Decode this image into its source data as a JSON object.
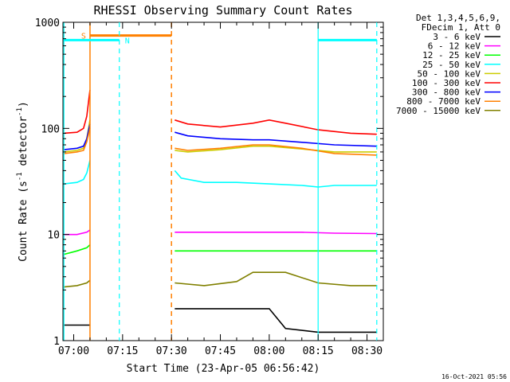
{
  "chart_data": {
    "type": "line",
    "title": "RHESSI Observing Summary Count Rates",
    "xlabel": "Start Time (23-Apr-05 06:56:42)",
    "ylabel_main": "Count Rate (s",
    "ylabel_sup1": "-1",
    "ylabel_mid": " detector",
    "ylabel_sup2": "-1",
    "ylabel_end": ")",
    "footer": "16-Oct-2021 05:56",
    "y_scale": "log",
    "ylim": [
      1,
      1000
    ],
    "y_ticks": [
      1,
      10,
      100,
      1000
    ],
    "y_tick_labels": [
      "1",
      "10",
      "100",
      "1000"
    ],
    "x_range_minutes": [
      "06:56:42",
      "08:35:00"
    ],
    "x_ticks": [
      "07:00",
      "07:15",
      "07:30",
      "07:45",
      "08:00",
      "08:15",
      "08:30"
    ],
    "legend_header": [
      "Det 1,3,4,5,6,9,",
      "FDecim 1, Att 0"
    ],
    "series": [
      {
        "name": "3 - 6 keV",
        "color": "#000000",
        "segments": [
          {
            "x": [
              "06:57",
              "07:01",
              "07:04",
              "07:05"
            ],
            "y": [
              1.4,
              1.4,
              1.4,
              1.4
            ]
          },
          {
            "x": [
              "07:31",
              "07:40",
              "07:50",
              "08:00",
              "08:05",
              "08:15",
              "08:25",
              "08:33"
            ],
            "y": [
              2.0,
              2.0,
              2.0,
              2.0,
              1.3,
              1.2,
              1.2,
              1.2
            ]
          }
        ]
      },
      {
        "name": "6 - 12 keV",
        "color": "#ff00ff",
        "segments": [
          {
            "x": [
              "06:57",
              "07:01",
              "07:04",
              "07:05"
            ],
            "y": [
              10,
              10,
              10.5,
              11
            ]
          },
          {
            "x": [
              "07:31",
              "07:40",
              "07:50",
              "08:00",
              "08:10",
              "08:20",
              "08:33"
            ],
            "y": [
              10.5,
              10.5,
              10.5,
              10.5,
              10.5,
              10.3,
              10.2
            ]
          }
        ]
      },
      {
        "name": "12 - 25 keV",
        "color": "#00ff00",
        "segments": [
          {
            "x": [
              "06:57",
              "07:01",
              "07:04",
              "07:05"
            ],
            "y": [
              6.5,
              7,
              7.5,
              8
            ]
          },
          {
            "x": [
              "07:31",
              "07:40",
              "07:50",
              "08:00",
              "08:10",
              "08:20",
              "08:33"
            ],
            "y": [
              7,
              7,
              7,
              7,
              7,
              7,
              7
            ]
          }
        ]
      },
      {
        "name": "25 - 50 keV",
        "color": "#00ffff",
        "segments": [
          {
            "x": [
              "06:57",
              "07:01",
              "07:03",
              "07:04",
              "07:05"
            ],
            "y": [
              30,
              31,
              33,
              38,
              50
            ]
          },
          {
            "x": [
              "07:31",
              "07:33",
              "07:40",
              "07:50",
              "08:00",
              "08:10",
              "08:15",
              "08:20",
              "08:33"
            ],
            "y": [
              40,
              34,
              31,
              31,
              30,
              29,
              28,
              29,
              29
            ]
          }
        ]
      },
      {
        "name": "50 - 100 keV",
        "color": "#cccc00",
        "segments": [
          {
            "x": [
              "06:57",
              "07:01",
              "07:03",
              "07:04",
              "07:05"
            ],
            "y": [
              60,
              62,
              65,
              80,
              120
            ]
          },
          {
            "x": [
              "07:31",
              "07:35",
              "07:45",
              "07:55",
              "08:00",
              "08:10",
              "08:20",
              "08:33"
            ],
            "y": [
              62,
              60,
              63,
              68,
              68,
              64,
              60,
              60
            ]
          }
        ]
      },
      {
        "name": "100 - 300 keV",
        "color": "#ff0000",
        "segments": [
          {
            "x": [
              "06:57",
              "07:01",
              "07:03",
              "07:04",
              "07:05"
            ],
            "y": [
              90,
              92,
              100,
              130,
              230
            ]
          },
          {
            "x": [
              "07:31",
              "07:35",
              "07:45",
              "07:55",
              "08:00",
              "08:05",
              "08:15",
              "08:25",
              "08:33"
            ],
            "y": [
              120,
              110,
              103,
              112,
              120,
              112,
              97,
              90,
              88
            ]
          }
        ]
      },
      {
        "name": "300 - 800 keV",
        "color": "#0000ff",
        "segments": [
          {
            "x": [
              "06:57",
              "07:01",
              "07:03",
              "07:04",
              "07:05"
            ],
            "y": [
              63,
              65,
              68,
              80,
              110
            ]
          },
          {
            "x": [
              "07:31",
              "07:35",
              "07:45",
              "07:55",
              "08:00",
              "08:10",
              "08:20",
              "08:33"
            ],
            "y": [
              92,
              85,
              80,
              78,
              78,
              74,
              70,
              68
            ]
          }
        ]
      },
      {
        "name": "800 - 7000 keV",
        "color": "#ff8000",
        "segments": [
          {
            "x": [
              "06:57",
              "07:01",
              "07:03",
              "07:04",
              "07:05"
            ],
            "y": [
              58,
              60,
              62,
              75,
              100
            ]
          },
          {
            "x": [
              "07:31",
              "07:35",
              "07:45",
              "07:55",
              "08:00",
              "08:10",
              "08:20",
              "08:33"
            ],
            "y": [
              65,
              62,
              65,
              70,
              70,
              65,
              58,
              56
            ]
          }
        ]
      },
      {
        "name": "7000 - 15000 keV",
        "color": "#808000",
        "segments": [
          {
            "x": [
              "06:57",
              "07:01",
              "07:04",
              "07:05"
            ],
            "y": [
              3.2,
              3.3,
              3.5,
              3.7
            ]
          },
          {
            "x": [
              "07:31",
              "07:40",
              "07:50",
              "07:55",
              "08:05",
              "08:15",
              "08:25",
              "08:33"
            ],
            "y": [
              3.5,
              3.3,
              3.6,
              4.4,
              4.4,
              3.5,
              3.3,
              3.3
            ]
          }
        ]
      }
    ],
    "annotations": {
      "saa": {
        "label": "S",
        "color": "#ff8000",
        "solid_x": "07:05",
        "dashed_x": "07:30",
        "bar_start": "07:05",
        "bar_end": "07:30",
        "bar_y": 750
      },
      "night": {
        "label": "N",
        "color": "#00ffff",
        "bars": [
          {
            "start": "06:57",
            "end": "07:14",
            "y": 680
          },
          {
            "start": "08:15",
            "end": "08:33",
            "y": 680
          }
        ],
        "solid_x": [
          "06:57",
          "08:15"
        ],
        "dashed_x": [
          "07:14",
          "08:33"
        ]
      }
    }
  }
}
